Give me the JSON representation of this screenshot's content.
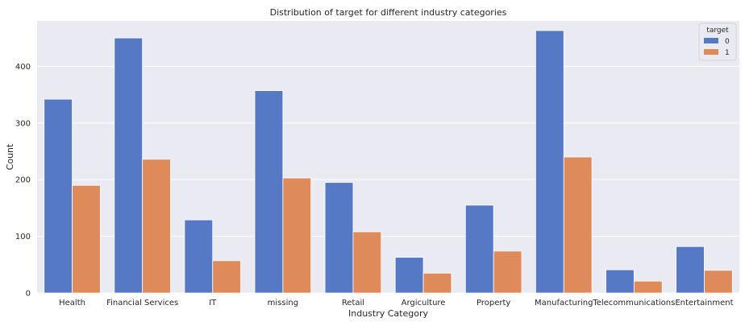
{
  "chart_data": {
    "type": "bar",
    "title": "Distribution of target for different industry categories",
    "xlabel": "Industry Category",
    "ylabel": "Count",
    "categories": [
      "Health",
      "Financial Services",
      "IT",
      "missing",
      "Retail",
      "Argiculture",
      "Property",
      "Manufacturing",
      "Telecommunications",
      "Entertainment"
    ],
    "series": [
      {
        "name": "0",
        "color": "#5679c6",
        "values": [
          342,
          450,
          129,
          357,
          195,
          63,
          155,
          463,
          41,
          82
        ]
      },
      {
        "name": "1",
        "color": "#df8a5b",
        "values": [
          190,
          236,
          57,
          203,
          108,
          35,
          74,
          240,
          21,
          40
        ]
      }
    ],
    "ylim": [
      0,
      480
    ],
    "yticks": [
      0,
      100,
      200,
      300,
      400
    ],
    "legend": {
      "title": "target",
      "position": "top-right"
    },
    "grid": true,
    "background": "#eaeaf2",
    "grid_color": "#ffffff"
  }
}
